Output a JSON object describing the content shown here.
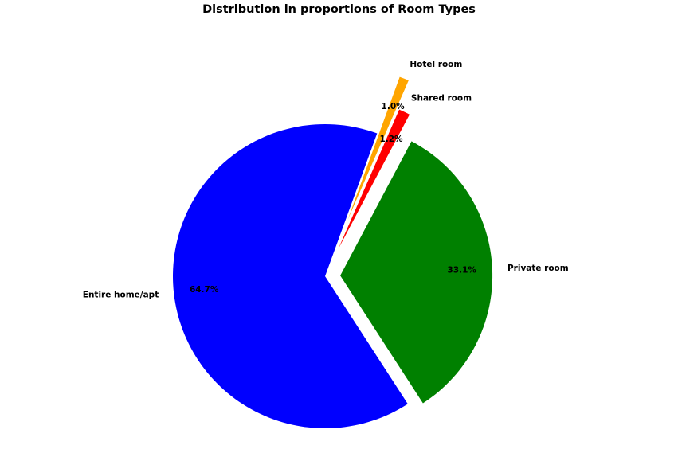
{
  "chart_data": {
    "type": "pie",
    "title": "Distribution in proportions of Room Types",
    "slices": [
      {
        "label": "Entire home/apt",
        "value": 64.7,
        "pct_label": "64.7%",
        "color": "#0000ff"
      },
      {
        "label": "Private room",
        "value": 33.1,
        "pct_label": "33.1%",
        "color": "#008000"
      },
      {
        "label": "Shared room",
        "value": 1.2,
        "pct_label": "1.2%",
        "color": "#ff0000"
      },
      {
        "label": "Hotel room",
        "value": 1.0,
        "pct_label": "1.0%",
        "color": "#ffa500"
      }
    ],
    "explode": [
      0,
      0.1,
      0.2,
      0.4
    ],
    "start_angle_deg": 70
  }
}
